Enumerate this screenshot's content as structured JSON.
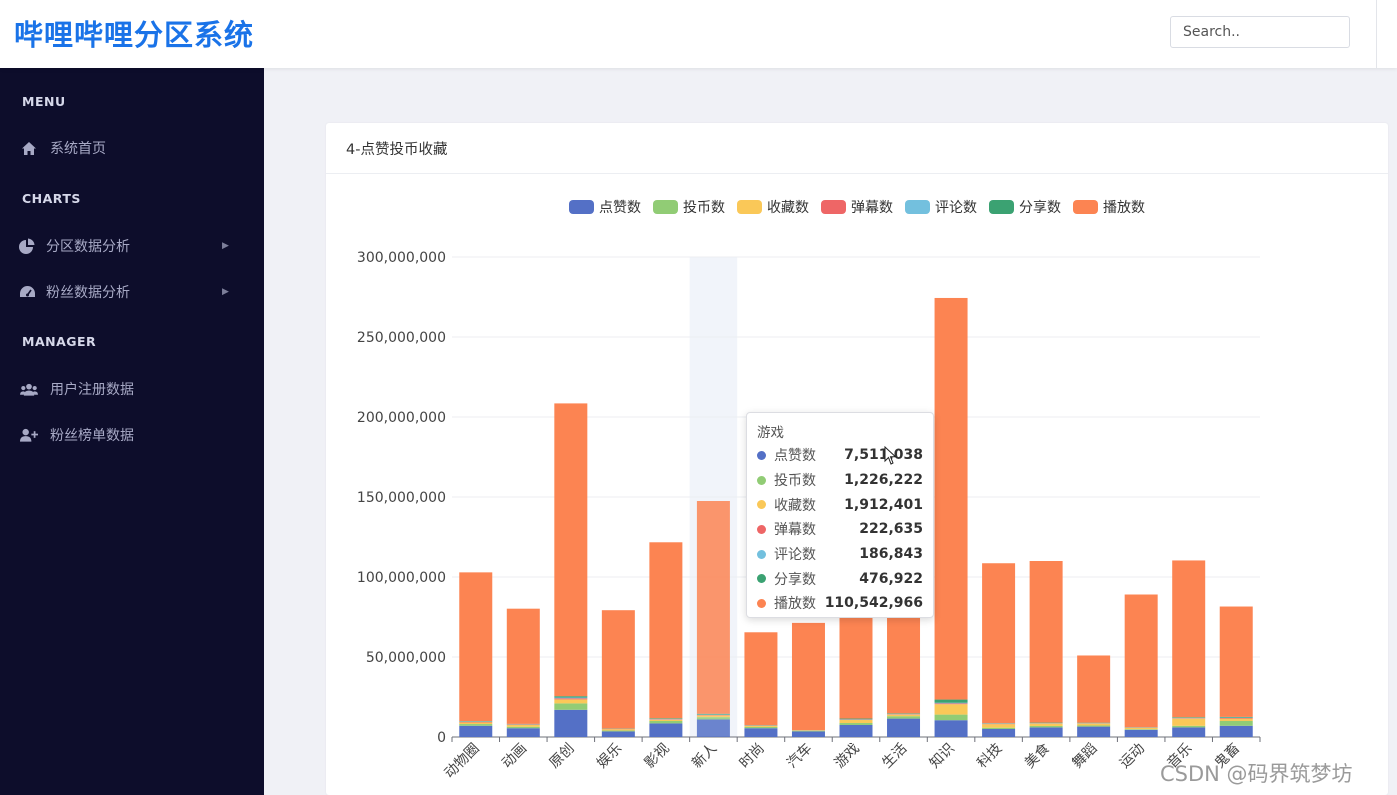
{
  "header": {
    "brand": "哔哩哔哩分区系统",
    "search_placeholder": "Search.."
  },
  "sidebar": {
    "sections": [
      {
        "title": "MENU",
        "items": [
          {
            "label": "系统首页",
            "icon": "home-icon"
          }
        ]
      },
      {
        "title": "CHARTS",
        "items": [
          {
            "label": "分区数据分析",
            "icon": "pie-chart-icon"
          },
          {
            "label": "粉丝数据分析",
            "icon": "dashboard-icon"
          }
        ]
      },
      {
        "title": "MANAGER",
        "items": [
          {
            "label": "用户注册数据",
            "icon": "users-icon"
          },
          {
            "label": "粉丝榜单数据",
            "icon": "user-plus-icon"
          }
        ]
      }
    ]
  },
  "card": {
    "title": "4-点赞投币收藏"
  },
  "chart_data": {
    "type": "bar",
    "stacked": true,
    "categories": [
      "动物圈",
      "动画",
      "原创",
      "娱乐",
      "影视",
      "新人",
      "时尚",
      "汽车",
      "游戏",
      "生活",
      "知识",
      "科技",
      "美食",
      "舞蹈",
      "运动",
      "音乐",
      "鬼畜"
    ],
    "ylim": [
      0,
      300000000
    ],
    "yticks": [
      "0",
      "50,000,000",
      "100,000,000",
      "150,000,000",
      "200,000,000",
      "250,000,000",
      "300,000,000"
    ],
    "grid": true,
    "legend_position": "top-center",
    "highlighted_category": "新人",
    "series": [
      {
        "name": "点赞数",
        "color": "#5470c6",
        "values": [
          7000000,
          5500000,
          17000000,
          3500000,
          8500000,
          11000000,
          5500000,
          3500000,
          7511038,
          11500000,
          10500000,
          5000000,
          6000000,
          6500000,
          4500000,
          6000000,
          7000000
        ]
      },
      {
        "name": "投币数",
        "color": "#91cc75",
        "values": [
          1100000,
          900000,
          4000000,
          600000,
          1500000,
          1400000,
          800000,
          300000,
          1226222,
          1500000,
          3500000,
          800000,
          900000,
          700000,
          400000,
          1000000,
          3000000
        ]
      },
      {
        "name": "收藏数",
        "color": "#fac858",
        "values": [
          1000000,
          1200000,
          2500000,
          800000,
          800000,
          1100000,
          700000,
          300000,
          1912401,
          1000000,
          6500000,
          2200000,
          1500000,
          1200000,
          800000,
          4500000,
          1500000
        ]
      },
      {
        "name": "弹幕数",
        "color": "#ee6666",
        "values": [
          300000,
          250000,
          700000,
          100000,
          300000,
          300000,
          150000,
          60000,
          222635,
          250000,
          500000,
          200000,
          150000,
          150000,
          80000,
          250000,
          400000
        ]
      },
      {
        "name": "评论数",
        "color": "#73c0de",
        "values": [
          200000,
          150000,
          500000,
          100000,
          200000,
          200000,
          100000,
          60000,
          186843,
          200000,
          400000,
          150000,
          150000,
          150000,
          80000,
          200000,
          250000
        ]
      },
      {
        "name": "分享数",
        "color": "#3ba272",
        "values": [
          300000,
          200000,
          800000,
          150000,
          400000,
          500000,
          200000,
          100000,
          476922,
          300000,
          2000000,
          250000,
          300000,
          250000,
          200000,
          400000,
          400000
        ]
      },
      {
        "name": "播放数",
        "color": "#fc8452",
        "values": [
          93000000,
          72000000,
          183000000,
          74000000,
          110000000,
          133000000,
          58000000,
          67000000,
          110542966,
          110000000,
          251000000,
          100000000,
          101000000,
          42000000,
          83000000,
          98000000,
          69000000
        ]
      }
    ]
  },
  "tooltip": {
    "title": "游戏",
    "rows": [
      {
        "name": "点赞数",
        "value": "7,511,038",
        "color": "#5470c6"
      },
      {
        "name": "投币数",
        "value": "1,226,222",
        "color": "#91cc75"
      },
      {
        "name": "收藏数",
        "value": "1,912,401",
        "color": "#fac858"
      },
      {
        "name": "弹幕数",
        "value": "222,635",
        "color": "#ee6666"
      },
      {
        "name": "评论数",
        "value": "186,843",
        "color": "#73c0de"
      },
      {
        "name": "分享数",
        "value": "476,922",
        "color": "#3ba272"
      },
      {
        "name": "播放数",
        "value": "110,542,966",
        "color": "#fc8452"
      }
    ]
  },
  "watermark": "CSDN @码界筑梦坊"
}
